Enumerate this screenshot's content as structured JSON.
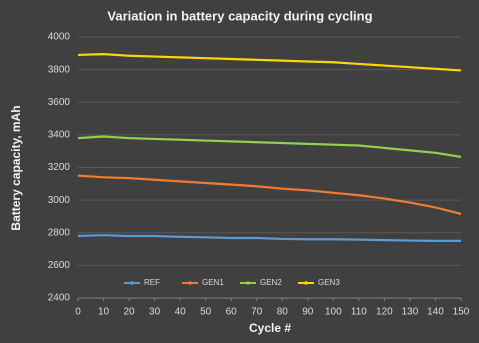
{
  "chart_data": {
    "type": "line",
    "title": "Variation in battery capacity during cycling",
    "x_label": "Cycle #",
    "y_label": "Battery capacity, mAh",
    "x": [
      0,
      10,
      20,
      30,
      40,
      50,
      60,
      70,
      80,
      90,
      100,
      110,
      120,
      130,
      140,
      150
    ],
    "series": [
      {
        "name": "REF",
        "color": "#5b9bd5",
        "values": [
          2780,
          2785,
          2780,
          2780,
          2775,
          2772,
          2768,
          2768,
          2762,
          2760,
          2760,
          2758,
          2755,
          2752,
          2750,
          2750
        ]
      },
      {
        "name": "GEN1",
        "color": "#ed7d31",
        "values": [
          3150,
          3140,
          3135,
          3125,
          3115,
          3105,
          3095,
          3085,
          3070,
          3060,
          3045,
          3030,
          3010,
          2985,
          2955,
          2915
        ]
      },
      {
        "name": "GEN2",
        "color": "#92d050",
        "values": [
          3380,
          3390,
          3380,
          3375,
          3370,
          3365,
          3360,
          3355,
          3350,
          3345,
          3340,
          3335,
          3320,
          3305,
          3290,
          3265
        ]
      },
      {
        "name": "GEN3",
        "color": "#ffd700",
        "values": [
          3890,
          3895,
          3885,
          3880,
          3875,
          3870,
          3865,
          3860,
          3855,
          3850,
          3845,
          3835,
          3825,
          3815,
          3805,
          3795
        ]
      }
    ],
    "xlim": [
      0,
      150
    ],
    "xticks": [
      0,
      10,
      20,
      30,
      40,
      50,
      60,
      70,
      80,
      90,
      100,
      110,
      120,
      130,
      140,
      150
    ],
    "ylim": [
      2400,
      4000
    ],
    "yticks": [
      2400,
      2600,
      2800,
      3000,
      3200,
      3400,
      3600,
      3800,
      4000
    ],
    "grid": true,
    "legend": "bottom"
  }
}
